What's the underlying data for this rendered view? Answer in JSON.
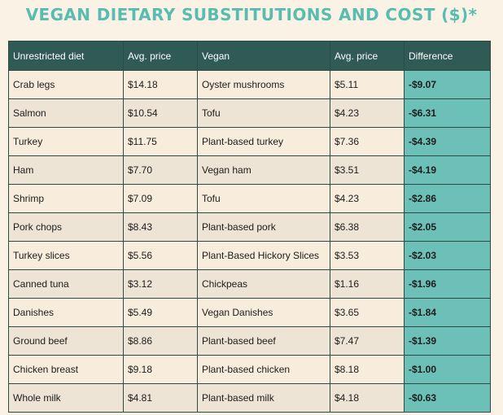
{
  "title": "VEGAN DIETARY SUBSTITUTIONS AND COST ($)*",
  "headers": [
    "Unrestricted diet",
    "Avg. price",
    "Vegan",
    "Avg. price",
    "Difference"
  ],
  "rows": [
    [
      "Crab legs",
      "$14.18",
      "Oyster mushrooms",
      "$5.11",
      "-$9.07"
    ],
    [
      "Salmon",
      "$10.54",
      "Tofu",
      "$4.23",
      "-$6.31"
    ],
    [
      "Turkey",
      "$11.75",
      "Plant-based turkey",
      "$7.36",
      "-$4.39"
    ],
    [
      "Ham",
      "$7.70",
      "Vegan ham",
      "$3.51",
      "-$4.19"
    ],
    [
      "Shrimp",
      "$7.09",
      "Tofu",
      "$4.23",
      "-$2.86"
    ],
    [
      "Pork chops",
      "$8.43",
      "Plant-based pork",
      "$6.38",
      "-$2.05"
    ],
    [
      "Turkey slices",
      "$5.56",
      "Plant-Based Hickory Slices",
      "$3.53",
      "-$2.03"
    ],
    [
      "Canned tuna",
      "$3.12",
      "Chickpeas",
      "$1.16",
      "-$1.96"
    ],
    [
      "Danishes",
      "$5.49",
      "Vegan Danishes",
      "$3.65",
      "-$1.84"
    ],
    [
      "Ground beef",
      "$8.86",
      "Plant-based beef",
      "$7.47",
      "-$1.39"
    ],
    [
      "Chicken breast",
      "$9.18",
      "Plant-based chicken",
      "$8.18",
      "-$1.00"
    ],
    [
      "Whole milk",
      "$4.81",
      "Plant-based milk",
      "$4.18",
      "-$0.63"
    ]
  ]
}
